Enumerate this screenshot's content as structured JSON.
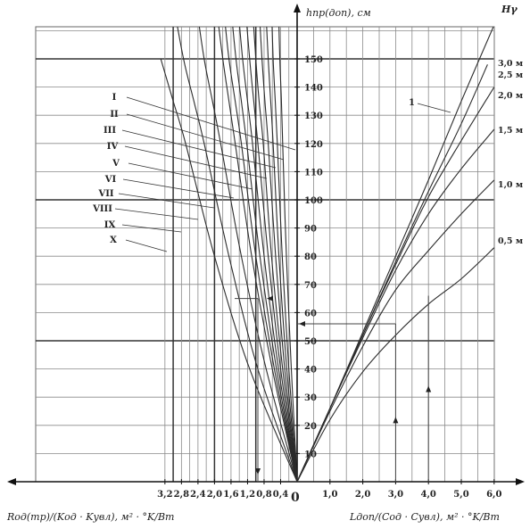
{
  "chart_data": {
    "type": "line",
    "h_axis": {
      "label": "hпр(доп), см",
      "ticks": [
        10,
        20,
        30,
        40,
        50,
        60,
        70,
        80,
        90,
        100,
        110,
        120,
        130,
        140,
        150
      ],
      "ylim": [
        0,
        170
      ]
    },
    "origin_label": "0",
    "left_axis": {
      "label": "Rод(тр)/(Kод · Kувл), м² · °K/Вт",
      "ticks": [
        "3,2",
        "2,8",
        "2,4",
        "2,0",
        "1,6",
        "1,2",
        "0,8",
        "0,4"
      ],
      "tick_values": [
        3.2,
        2.8,
        2.4,
        2.0,
        1.6,
        1.2,
        0.8,
        0.4
      ],
      "xlim": [
        0,
        3.3
      ]
    },
    "right_axis": {
      "label": "Lдоп/(Cод · Cувл), м² · °K/Вт",
      "ticks": [
        "1,0",
        "2,0",
        "3,0",
        "4,0",
        "5,0",
        "6,0"
      ],
      "tick_values": [
        1.0,
        2.0,
        3.0,
        4.0,
        5.0,
        6.0
      ],
      "xlim": [
        0,
        6.0
      ]
    },
    "h_gamma_title": "Hγ",
    "left_series": [
      {
        "name": "I",
        "curve": [
          [
            0.0,
            0
          ],
          [
            0.6,
            40
          ],
          [
            1.1,
            80
          ],
          [
            1.5,
            120
          ],
          [
            1.65,
            135
          ],
          [
            1.8,
            150
          ],
          [
            1.95,
            168
          ]
        ]
      },
      {
        "name": "II",
        "curve": [
          [
            0.0,
            0
          ],
          [
            0.55,
            40
          ],
          [
            1.0,
            80
          ],
          [
            1.35,
            120
          ],
          [
            1.5,
            135
          ],
          [
            1.65,
            150
          ],
          [
            1.78,
            168
          ]
        ]
      },
      {
        "name": "III",
        "curve": [
          [
            0.0,
            0
          ],
          [
            0.5,
            40
          ],
          [
            0.9,
            80
          ],
          [
            1.22,
            120
          ],
          [
            1.35,
            135
          ],
          [
            1.48,
            150
          ],
          [
            1.6,
            168
          ]
        ]
      },
      {
        "name": "IV",
        "curve": [
          [
            0.0,
            0
          ],
          [
            0.45,
            40
          ],
          [
            0.8,
            80
          ],
          [
            1.08,
            120
          ],
          [
            1.2,
            135
          ],
          [
            1.32,
            150
          ],
          [
            1.43,
            168
          ]
        ]
      },
      {
        "name": "V",
        "curve": [
          [
            0.0,
            0
          ],
          [
            0.4,
            40
          ],
          [
            0.7,
            80
          ],
          [
            0.95,
            120
          ],
          [
            1.05,
            135
          ],
          [
            1.15,
            150
          ],
          [
            1.25,
            168
          ]
        ]
      },
      {
        "name": "VI",
        "curve": [
          [
            0.0,
            0
          ],
          [
            0.35,
            40
          ],
          [
            0.62,
            80
          ],
          [
            0.82,
            120
          ],
          [
            0.92,
            135
          ],
          [
            1.0,
            150
          ],
          [
            1.08,
            168
          ]
        ]
      },
      {
        "name": "VII",
        "curve": [
          [
            0.0,
            0
          ],
          [
            0.3,
            40
          ],
          [
            0.52,
            80
          ],
          [
            0.7,
            120
          ],
          [
            0.78,
            135
          ],
          [
            0.85,
            150
          ],
          [
            0.92,
            168
          ]
        ]
      },
      {
        "name": "VIII",
        "curve": [
          [
            0.0,
            0
          ],
          [
            0.25,
            40
          ],
          [
            0.44,
            80
          ],
          [
            0.58,
            120
          ],
          [
            0.64,
            135
          ],
          [
            0.7,
            150
          ],
          [
            0.76,
            168
          ]
        ]
      },
      {
        "name": "IX",
        "curve": [
          [
            0.0,
            0
          ],
          [
            0.2,
            40
          ],
          [
            0.36,
            80
          ],
          [
            0.48,
            120
          ],
          [
            0.53,
            135
          ],
          [
            0.58,
            150
          ],
          [
            0.62,
            168
          ]
        ]
      },
      {
        "name": "X",
        "curve": [
          [
            0.0,
            0
          ],
          [
            0.14,
            40
          ],
          [
            0.26,
            80
          ],
          [
            0.35,
            120
          ],
          [
            0.38,
            135
          ],
          [
            0.42,
            150
          ],
          [
            0.45,
            168
          ]
        ]
      }
    ],
    "right_series": [
      {
        "name": "3,0 м",
        "curve": [
          [
            0,
            0
          ],
          [
            1.0,
            26
          ],
          [
            2.0,
            53
          ],
          [
            3.0,
            80
          ],
          [
            4.0,
            107
          ],
          [
            5.0,
            135
          ],
          [
            6.0,
            162
          ]
        ]
      },
      {
        "name": "2,5 м",
        "curve": [
          [
            0,
            0
          ],
          [
            1.0,
            26
          ],
          [
            2.0,
            52
          ],
          [
            3.0,
            78
          ],
          [
            4.0,
            103
          ],
          [
            5.0,
            127
          ],
          [
            5.8,
            148
          ]
        ]
      },
      {
        "name": "2,0 м",
        "curve": [
          [
            0,
            0
          ],
          [
            1.0,
            26
          ],
          [
            2.0,
            52
          ],
          [
            3.0,
            77
          ],
          [
            4.0,
            101
          ],
          [
            5.0,
            121
          ],
          [
            6.0,
            140
          ]
        ]
      },
      {
        "name": "1,5 м",
        "curve": [
          [
            0,
            0
          ],
          [
            1.0,
            26
          ],
          [
            2.0,
            51
          ],
          [
            3.0,
            75
          ],
          [
            4.0,
            95
          ],
          [
            5.0,
            111
          ],
          [
            6.0,
            125
          ]
        ]
      },
      {
        "name": "1,0 м",
        "curve": [
          [
            0,
            0
          ],
          [
            1.0,
            25
          ],
          [
            2.0,
            48
          ],
          [
            3.0,
            68
          ],
          [
            4.0,
            82
          ],
          [
            5.0,
            95
          ],
          [
            6.0,
            107
          ]
        ]
      },
      {
        "name": "0,5 м",
        "curve": [
          [
            0,
            0
          ],
          [
            1.0,
            22
          ],
          [
            2.0,
            39
          ],
          [
            3.0,
            52
          ],
          [
            4.0,
            63
          ],
          [
            5.0,
            72
          ],
          [
            6.0,
            83
          ]
        ]
      }
    ],
    "right_annotation": "1",
    "grid": true
  }
}
